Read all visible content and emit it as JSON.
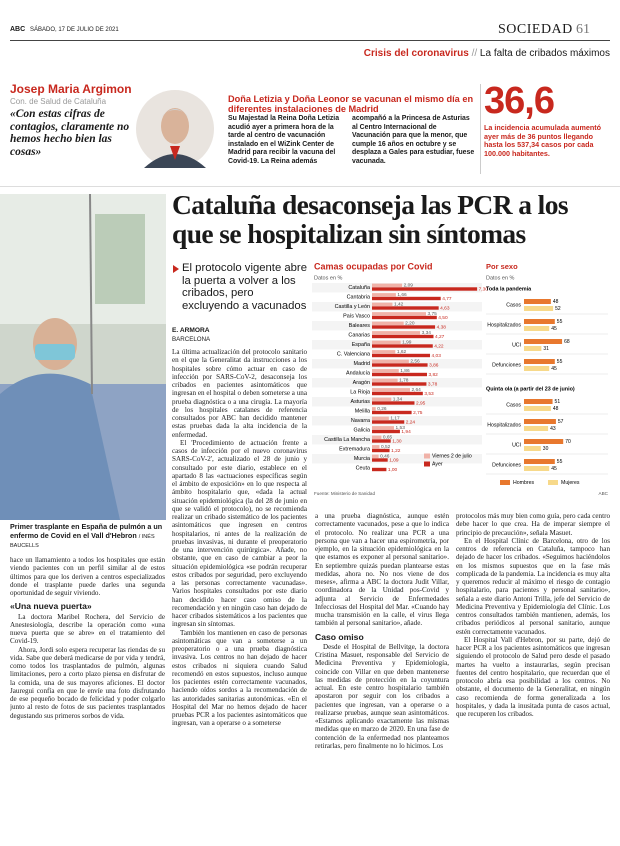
{
  "header": {
    "brand": "ABC",
    "date": "SÁBADO, 17 DE JULIO DE 2021",
    "section": "SOCIEDAD",
    "page": "61",
    "kicker_topic": "Crisis del coronavirus",
    "kicker_subtopic": "La falta de cribados máximos"
  },
  "quote_box": {
    "name": "Josep Maria Argimon",
    "role": "Con. de Salud de Cataluña",
    "quote": "«Con estas cifras de contagios, claramente no hemos hecho bien las cosas»"
  },
  "royal_news": {
    "headline": "Doña Letizia y Doña Leonor se vacunan el mismo día en diferentes instalaciones de Madrid",
    "body": [
      "Su Majestad la Reina Doña Letizia acudió ayer a primera hora de la tarde al centro de vacunación instalado en el WiZink Center de Madrid para recibir la vacuna del Covid-19. La Reina además",
      "acompañó a la Princesa de Asturias al Centro Internacional de Vacunación para que la menor, que cumple 16 años en octubre y se desplaza a Gales para estudiar, fuese vacunada."
    ]
  },
  "stat_box": {
    "number": "36,6",
    "text": "La incidencia acumulada aumentó ayer más de 36 puntos llegando hasta los 537,34 casos por cada 100.000 habitantes."
  },
  "photo_caption": {
    "text": "Primer trasplante en España de pulmón a un enfermo de Covid en el Vall d'Hebron",
    "credit": "/ INÉS BAUCELLS"
  },
  "side_story": {
    "items": [
      {
        "text": "hace un llamamiento a todos los hospitales que están viendo pacientes con un perfil similar al de estos últimos para que los deriven a centros especializados donde el trasplante puede darles una segunda oportunidad de seguir viviendo."
      },
      {
        "subhead": "«Una nueva puerta»"
      },
      {
        "text": "La doctora Maribel Rochera, del Servicio de Anestesiología, describe la operación como «una nueva puerta que se abre» en el tratamiento del Covid-19."
      },
      {
        "text": "Ahora, Jordi solo espera recuperar las riendas de su vida. Sabe que deberá medicarse de por vida y tendrá, como todos los trasplantados de pulmón, algunas limitaciones, pero a corto plazo piensa en disfrutar de la comida, una de sus mayores aficiones. El doctor Jauregui confía en que le envíe una foto disfrutando de ese pequeño bocado de felicidad y poder colgarlo junto al resto de fotos de sus pacientes trasplantados degustando sus primeros sorbos de vida."
      }
    ]
  },
  "article": {
    "headline": "Cataluña desaconseja las PCR a los que se hospitalizan sin síntomas",
    "subheadline": "El protocolo vigente abre la puerta a volver a los cribados, pero excluyendo a vacunados",
    "author": "E. ARMORA",
    "location": "BARCELONA",
    "columns": [
      [
        {
          "text": "La última actualización del protocolo sanitario en el que la Generalitat da instrucciones a los hospitales sobre cómo actuar en caso de infección por SARS-CoV-2, desaconseja los cribados en pacientes asintomáticos que ingresan en el hospital o deben someterse a una prueba diagnóstica o a una cirugía. La mayoría de los hospitales catalanes de referencia consultados por ABC han decidido mantener estas pruebas dada la alta incidencia de la enfermedad."
        },
        {
          "text": "El 'Procedimiento de actuación frente a casos de infección por el nuevo coronavirus SARS-CoV-2', actualizado el 28 de junio y consultado por este diario, establece en el apartado 8 las «actuaciones específicas según el ámbito de exposición» en lo que respecta al ámbito hospitalario que, «dada la actual situación epidemiológica (la del 28 de junio en que se validó el protocolo), no se recomienda realizar un cribado sistemático de los pacientes asintomáticos que ingresen en centros hospitalarios, ni antes de la realización de pruebas invasivas, ni durante el preoperatorio de una intervención quirúrgica». Añade, no obstante, que en caso de cambiar a peor la situación epidemiológica «se podrán recuperar estos cribados por seguridad, pero excluyendo a las personas correctamente vacunadas». Varios hospitales consultados por este diario han decidido hacer caso omiso de la recomendación y en ningún caso han dejado de hacer cribados sistemáticos a los pacientes que ingresan sin síntomas."
        },
        {
          "text": "También los mantienen en caso de personas asintomáticas que van a someterse a un preoperatorio o a una prueba diagnóstica invasiva. Los centros no han dejado de hacer estos cribados ni siquiera cuando Salud recomendó en estos supuestos, incluso aunque los pacientes estén correctamente vacunados, haciendo oídos sordos a la recomendación de las autoridades sanitarias autonómicas. «En el Hospital del Mar no hemos dejado de hacer pruebas PCR a los pacientes asintomáticos que ingresan, van a operarse o a someterse"
        }
      ],
      [
        {
          "text": "a una prueba diagnóstica, aunque estén correctamente vacunados, pese a que lo indica el protocolo. No realizar una PCR a una persona que van a hacer una espirometría, por ejemplo, en la situación epidemiológica en la que estamos es exponer al personal sanitario». En septiembre quizás puedan plantearse estas medidas, ahora no. No nos viene de dos meses», afirma a ABC la doctora Judit Villar, coordinadora de la Unidad pos-Covid y adjunta al Servicio de Enfermedades Infecciosas del Hospital del Mar. «Cuando hay mucha transmisión en la calle, el virus llega también al personal sanitario», añade."
        },
        {
          "subhead": "Caso omiso"
        },
        {
          "text": "Desde el Hospital de Bellvitge, la doctora Cristina Masuet, responsable del Servicio de Medicina Preventiva y Epidemiología, coincide con Villar en que deben mantenerse las medidas de protección en la coyuntura actual. En este centro hospitalario también apostaron por seguir con los cribados a pacientes que ingresan, van a operarse o a realizarse pruebas, aunque sean asintomáticos. «Estamos aplicando exactamente las mismas medidas que en marzo de 2020. En una fase de contención de la enfermedad nos planteamos retirarlas, pero finalmente no lo hicimos. Los"
        }
      ],
      [
        {
          "text": "protocolos más muy bien como guía, pero cada centro debe hacer lo que crea. Ha de imperar siempre el principio de precaución», señala Masuet."
        },
        {
          "text": "En el Hospital Clínic de Barcelona, otro de los centros de referencia en Cataluña, tampoco han dejado de hacer los cribados. «Seguimos haciéndolos en los mismos supuestos que en la fase más complicada de la pandemia. La incidencia es muy alta y queremos reducir al máximo el riesgo de contagio hospitalario, para pacientes y personal sanitario», señala a este diario Antoni Trilla, jefe del Servicio de Medicina Preventiva y Epidemiología del Clínic. Los centros consultados también mantienen, además, los cribados periódicos al personal sanitario, aunque estén correctamente vacunados."
        },
        {
          "text": "El Hospital Vall d'Hebron, por su parte, dejó de hacer PCR a los pacientes asintomáticos que ingresan siguiendo el protocolo de Salud pero desde el pasado martes ha vuelto a instaurarlas, según precisan fuentes del centro hospitalario, que recuerdan que el protocolo abría esa posibilidad a los centros. No obstante, el documento de la Generalitat, en ningún caso recomienda de forma generalizada a los hospitales, y dada la inusitada punta de casos actual, que recuperen los cribados."
        }
      ]
    ]
  },
  "chart_data": [
    {
      "type": "hbar",
      "title": "Camas ocupadas por Covid",
      "subtitle": "Datos en %",
      "source": "Fuente: Ministerio de Sanidad",
      "xlim": [
        0,
        7.5
      ],
      "categories": [
        "Cataluña",
        "Cantabria",
        "Castilla y León",
        "País Vasco",
        "Baleares",
        "Canarias",
        "España",
        "C. Valenciana",
        "Madrid",
        "Andalucía",
        "Aragón",
        "La Rioja",
        "Asturias",
        "Melilla",
        "Navarra",
        "Galicia",
        "Castilla La Mancha",
        "Extremadura",
        "Murcia",
        "Ceuta"
      ],
      "series": [
        {
          "name": "Viernes 2 de julio",
          "color": "#f0b2a8",
          "values": [
            2.09,
            1.66,
            1.42,
            3.75,
            2.2,
            3.34,
            1.99,
            1.62,
            2.56,
            1.86,
            1.78,
            2.64,
            1.34,
            0.26,
            1.17,
            1.53,
            0.65,
            0.52,
            0.46,
            null
          ],
          "value_labels": [
            "2,09",
            "1,66",
            "1,42",
            "3,75",
            "2,20",
            "3,34",
            "1,99",
            "1,62",
            "2,56",
            "1,86",
            "1,78",
            "2,64",
            "1,34",
            "0,26",
            "1,17",
            "1,53",
            "0,65",
            "0,52",
            "0,46",
            null
          ]
        },
        {
          "name": "Ayer",
          "color": "#c8281e",
          "values": [
            7.3,
            4.77,
            4.63,
            4.5,
            4.38,
            4.27,
            4.22,
            4.03,
            3.86,
            3.82,
            3.78,
            3.53,
            2.95,
            2.75,
            2.24,
            1.94,
            1.3,
            1.22,
            1.09,
            1.0
          ],
          "value_labels": [
            "7,30",
            "4,77",
            "4,63",
            "4,50",
            "4,38",
            "4,27",
            "4,22",
            "4,03",
            "3,86",
            "3,82",
            "3,78",
            "3,53",
            "2,95",
            "2,75",
            "2,24",
            "1,94",
            "1,30",
            "1,22",
            "1,09",
            "1,00"
          ]
        }
      ]
    },
    {
      "type": "grouped-hbar",
      "title": "Por sexo",
      "subtitle": "Datos en %",
      "credit": "ABC",
      "xlim": [
        0,
        100
      ],
      "groups": [
        {
          "title": "Toda la pandemia",
          "categories": [
            "Casos",
            "Hospitalizados",
            "UCI",
            "Defunciones"
          ]
        },
        {
          "title": "Quinta ola (a partir del 23 de junio)",
          "categories": [
            "Casos",
            "Hospitalizados",
            "UCI",
            "Defunciones"
          ]
        }
      ],
      "series": [
        {
          "name": "Hombres",
          "color": "#e8782e",
          "values": [
            [
              48,
              55,
              68,
              55
            ],
            [
              51,
              57,
              70,
              55
            ]
          ]
        },
        {
          "name": "Mujeres",
          "color": "#f7d98a",
          "values": [
            [
              52,
              45,
              31,
              45
            ],
            [
              48,
              43,
              30,
              45
            ]
          ]
        }
      ]
    }
  ]
}
